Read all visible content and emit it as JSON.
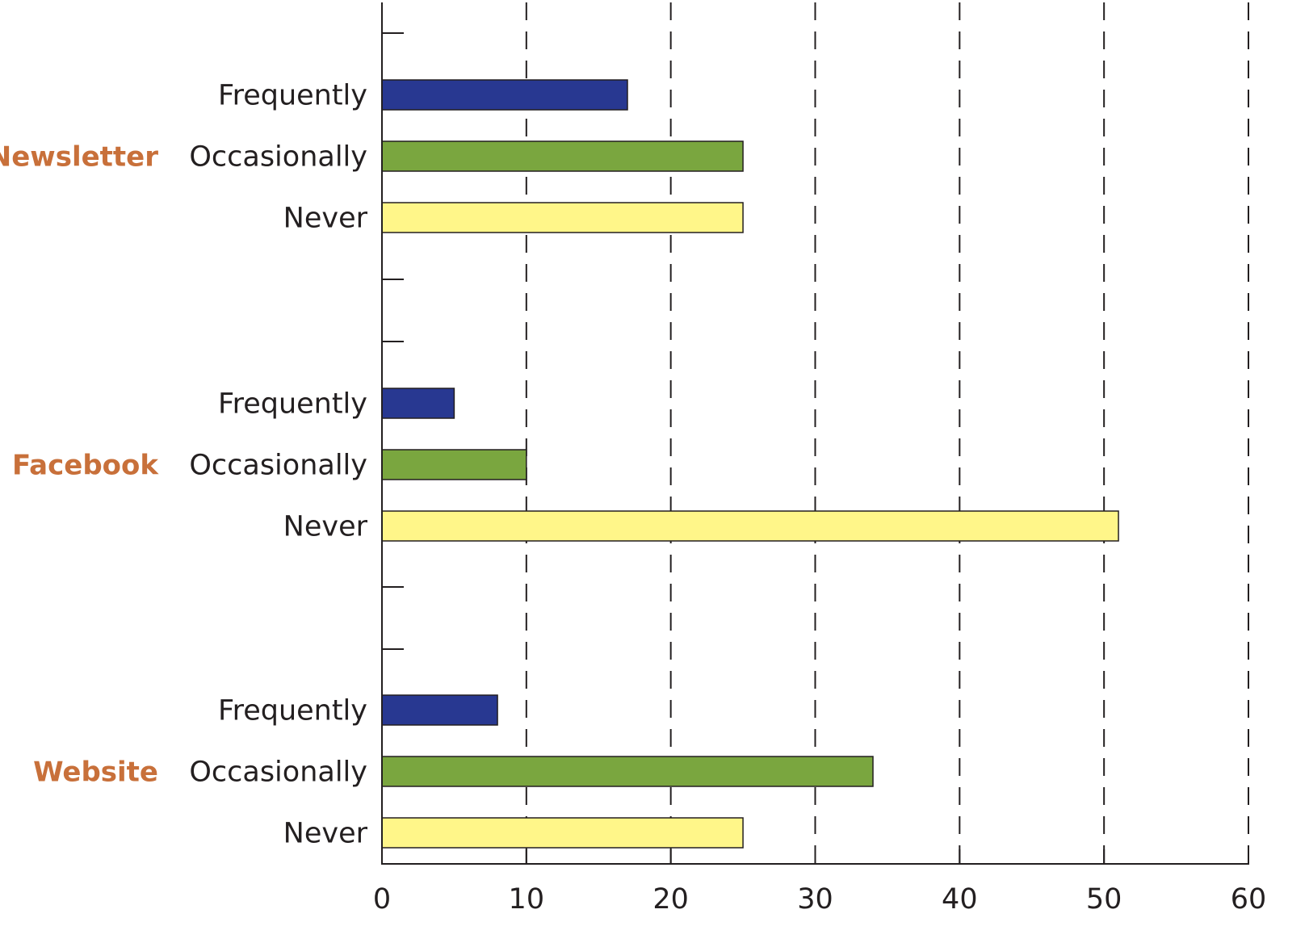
{
  "chart_data": {
    "type": "bar",
    "orientation": "horizontal",
    "title": "",
    "xlabel": "",
    "ylabel": "",
    "xlim": [
      0,
      60
    ],
    "x_ticks": [
      0,
      10,
      20,
      30,
      40,
      50,
      60
    ],
    "grid": "vertical dashed",
    "legend": "none",
    "group_label_color": "#c8703a",
    "groups": [
      {
        "name": "Newsletter",
        "bars": [
          {
            "label": "Frequently",
            "value": 17,
            "color": "#283891"
          },
          {
            "label": "Occasionally",
            "value": 25,
            "color": "#7aa63f"
          },
          {
            "label": "Never",
            "value": 25,
            "color": "#fff689"
          }
        ]
      },
      {
        "name": "Facebook",
        "bars": [
          {
            "label": "Frequently",
            "value": 5,
            "color": "#283891"
          },
          {
            "label": "Occasionally",
            "value": 10,
            "color": "#7aa63f"
          },
          {
            "label": "Never",
            "value": 51,
            "color": "#fff689"
          }
        ]
      },
      {
        "name": "Website",
        "bars": [
          {
            "label": "Frequently",
            "value": 8,
            "color": "#283891"
          },
          {
            "label": "Occasionally",
            "value": 34,
            "color": "#7aa63f"
          },
          {
            "label": "Never",
            "value": 25,
            "color": "#fff689"
          }
        ]
      }
    ]
  }
}
